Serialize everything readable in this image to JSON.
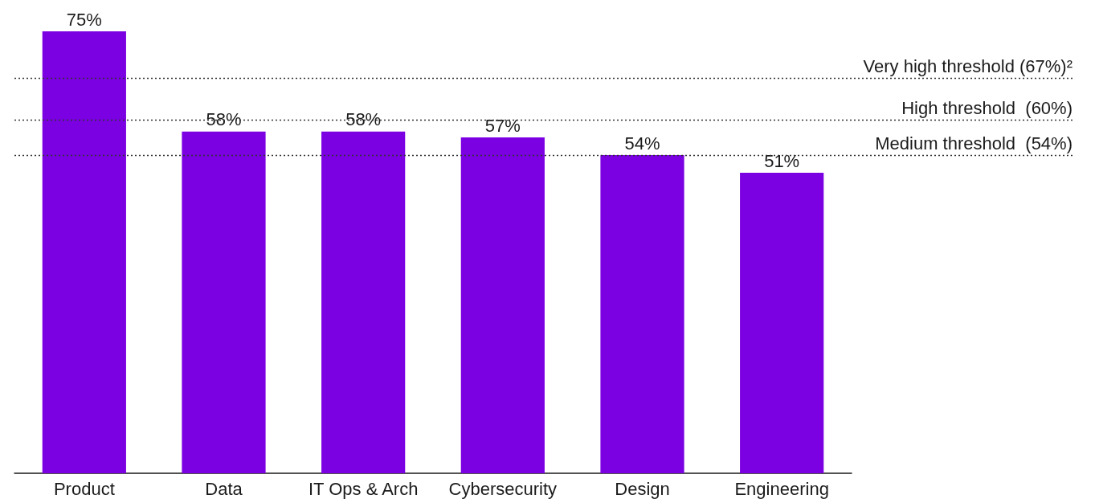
{
  "chart_data": {
    "type": "bar",
    "categories": [
      "Product",
      "Data",
      "IT Ops & Arch",
      "Cybersecurity",
      "Design",
      "Engineering"
    ],
    "values": [
      75,
      58,
      58,
      57,
      54,
      51
    ],
    "value_labels": [
      "75%",
      "58%",
      "58%",
      "57%",
      "54%",
      "51%"
    ],
    "color": "#7b00e2",
    "ylim": [
      0,
      75
    ],
    "grid": false,
    "ref_lines": [
      {
        "axis": "y",
        "value": 67,
        "label": "Very high threshold (67%)²",
        "line_style": "dotted",
        "color": "#333333"
      },
      {
        "axis": "y",
        "value": 60,
        "label": "High threshold  (60%)",
        "line_style": "dotted",
        "color": "#333333"
      },
      {
        "axis": "y",
        "value": 54,
        "label": "Medium threshold  (54%)",
        "line_style": "dotted",
        "color": "#333333"
      }
    ]
  }
}
